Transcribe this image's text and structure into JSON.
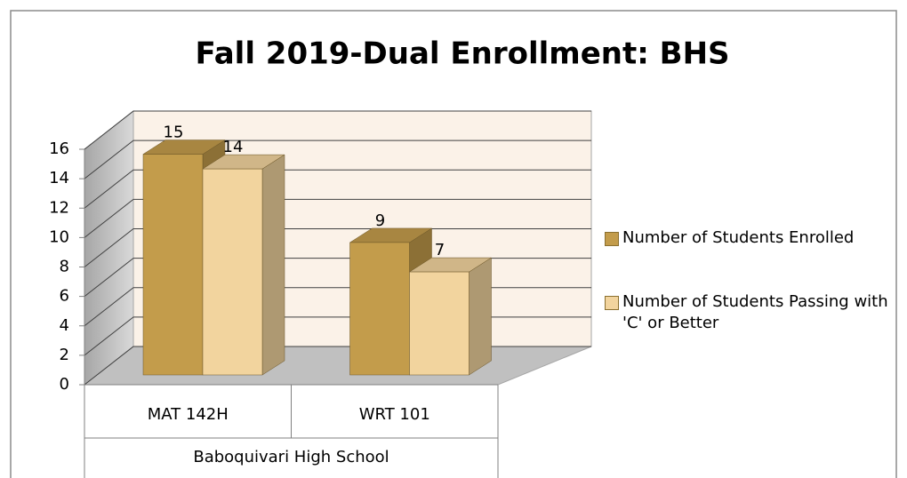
{
  "chart_data": {
    "type": "bar3d",
    "title": "Fall 2019-Dual Enrollment: BHS",
    "categories": [
      "MAT 142H",
      "WRT 101"
    ],
    "group_label": "Baboquivari High School",
    "series": [
      {
        "name": "Number of Students Enrolled",
        "color": "#c39c4b",
        "values": [
          15,
          9
        ]
      },
      {
        "name": "Number of Students Passing with 'C' or Better",
        "color": "#f2d49e",
        "values": [
          14,
          7
        ]
      }
    ],
    "ylim": [
      0,
      16
    ],
    "yticks": [
      0,
      2,
      4,
      6,
      8,
      10,
      12,
      14,
      16
    ],
    "grid": true,
    "legend": "right"
  }
}
